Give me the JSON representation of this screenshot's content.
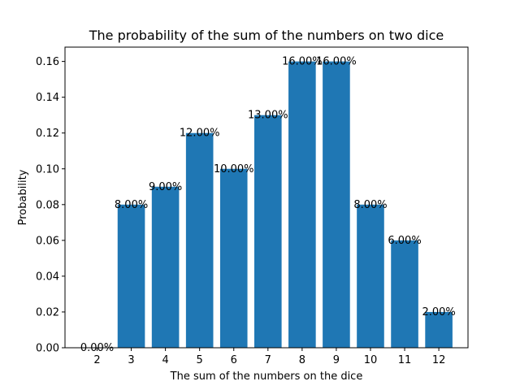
{
  "chart_data": {
    "type": "bar",
    "title": "The probability of the sum of the numbers on two dice",
    "xlabel": "The sum of the numbers on the dice",
    "ylabel": "Probability",
    "categories": [
      "2",
      "3",
      "4",
      "5",
      "6",
      "7",
      "8",
      "9",
      "10",
      "11",
      "12"
    ],
    "values": [
      0.0,
      0.08,
      0.09,
      0.12,
      0.1,
      0.13,
      0.16,
      0.16,
      0.08,
      0.06,
      0.02
    ],
    "data_labels": [
      "0.00%",
      "8.00%",
      "9.00%",
      "12.00%",
      "10.00%",
      "13.00%",
      "16.00%",
      "16.00%",
      "8.00%",
      "6.00%",
      "2.00%"
    ],
    "ylim": [
      0,
      0.168
    ],
    "yticks": [
      0.0,
      0.02,
      0.04,
      0.06,
      0.08,
      0.1,
      0.12,
      0.14,
      0.16
    ],
    "ytick_labels": [
      "0.00",
      "0.02",
      "0.04",
      "0.06",
      "0.08",
      "0.10",
      "0.12",
      "0.14",
      "0.16"
    ],
    "bar_color": "#1f77b4",
    "grid": false,
    "legend": "none"
  }
}
